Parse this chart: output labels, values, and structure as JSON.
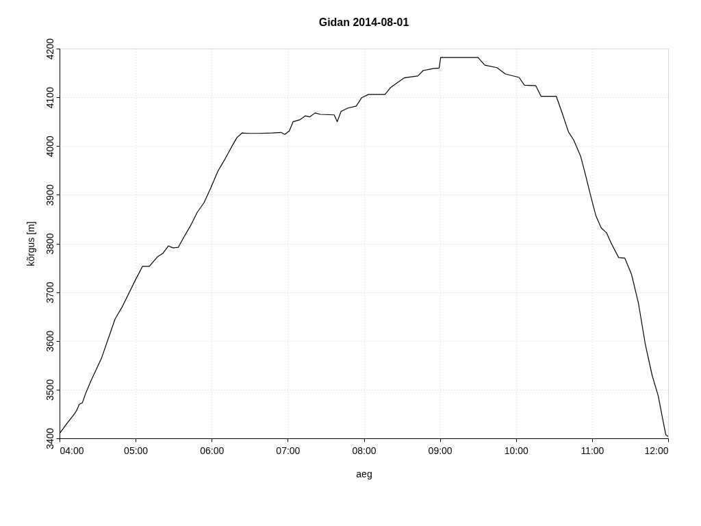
{
  "chart_data": {
    "type": "line",
    "title": "Gidan 2014-08-01",
    "xlabel": "aeg",
    "ylabel": "kõrgus [m]",
    "x": [
      4.0,
      4.1,
      4.19,
      4.22,
      4.26,
      4.3,
      4.34,
      4.41,
      4.55,
      4.73,
      4.82,
      5.0,
      5.09,
      5.18,
      5.29,
      5.36,
      5.43,
      5.49,
      5.56,
      5.63,
      5.72,
      5.81,
      5.9,
      5.99,
      6.08,
      6.17,
      6.26,
      6.33,
      6.4,
      6.48,
      6.62,
      6.8,
      6.91,
      6.96,
      7.02,
      7.07,
      7.16,
      7.23,
      7.29,
      7.36,
      7.43,
      7.61,
      7.65,
      7.7,
      7.79,
      7.9,
      7.97,
      8.06,
      8.28,
      8.35,
      8.44,
      8.53,
      8.71,
      8.78,
      8.91,
      8.99,
      9.01,
      9.14,
      9.5,
      9.59,
      9.75,
      9.86,
      10.04,
      10.11,
      10.26,
      10.33,
      10.53,
      10.6,
      10.69,
      10.76,
      10.85,
      10.92,
      10.98,
      11.05,
      11.12,
      11.19,
      11.25,
      11.35,
      11.43,
      11.52,
      11.61,
      11.7,
      11.79,
      11.87,
      11.93,
      11.97,
      12.0
    ],
    "series": [
      {
        "color": "#000000",
        "values": [
          3410,
          3431,
          3449,
          3456,
          3470,
          3473,
          3491,
          3517,
          3564,
          3645,
          3669,
          3726,
          3753,
          3753,
          3773,
          3780,
          3795,
          3791,
          3792,
          3812,
          3836,
          3864,
          3884,
          3915,
          3948,
          3972,
          3998,
          4017,
          4027,
          4026,
          4026,
          4027,
          4028,
          4024,
          4031,
          4050,
          4054,
          4062,
          4060,
          4068,
          4065,
          4064,
          4050,
          4071,
          4078,
          4082,
          4099,
          4106,
          4106,
          4120,
          4130,
          4140,
          4144,
          4155,
          4159,
          4160,
          4182,
          4182,
          4182,
          4166,
          4161,
          4148,
          4141,
          4125,
          4124,
          4102,
          4102,
          4071,
          4029,
          4012,
          3979,
          3937,
          3899,
          3857,
          3832,
          3822,
          3801,
          3771,
          3770,
          3736,
          3677,
          3593,
          3529,
          3487,
          3438,
          3407,
          3404
        ]
      }
    ],
    "xlim": [
      4,
      12
    ],
    "xticks": [
      {
        "value": 4,
        "label": "04:00"
      },
      {
        "value": 5,
        "label": "05:00"
      },
      {
        "value": 6,
        "label": "06:00"
      },
      {
        "value": 7,
        "label": "07:00"
      },
      {
        "value": 8,
        "label": "08:00"
      },
      {
        "value": 9,
        "label": "09:00"
      },
      {
        "value": 10,
        "label": "10:00"
      },
      {
        "value": 11,
        "label": "11:00"
      },
      {
        "value": 12,
        "label": "12:00"
      }
    ],
    "ylim": [
      3400,
      4200
    ],
    "yticks": [
      3400,
      3500,
      3600,
      3700,
      3800,
      3900,
      4000,
      4100,
      4200
    ],
    "grid": true,
    "line_style": "solid",
    "marker": "none"
  }
}
